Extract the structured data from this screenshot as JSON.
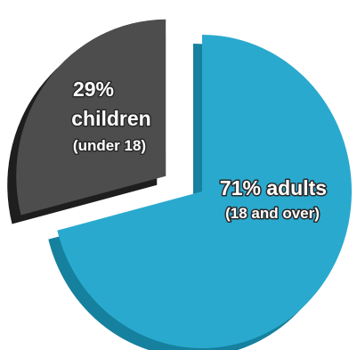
{
  "chart_data": {
    "type": "pie",
    "style": "3d-exploded",
    "slices": [
      {
        "percent": 71,
        "label": "71% adults",
        "sublabel": "(18 and over)",
        "color": "#2aa9ce",
        "side_color": "#15819e"
      },
      {
        "percent": 29,
        "label_line1": "29%",
        "label_line2": "children",
        "sublabel": "(under 18)",
        "color": "#4d4d4d",
        "side_color": "#1e1e1e"
      }
    ]
  }
}
